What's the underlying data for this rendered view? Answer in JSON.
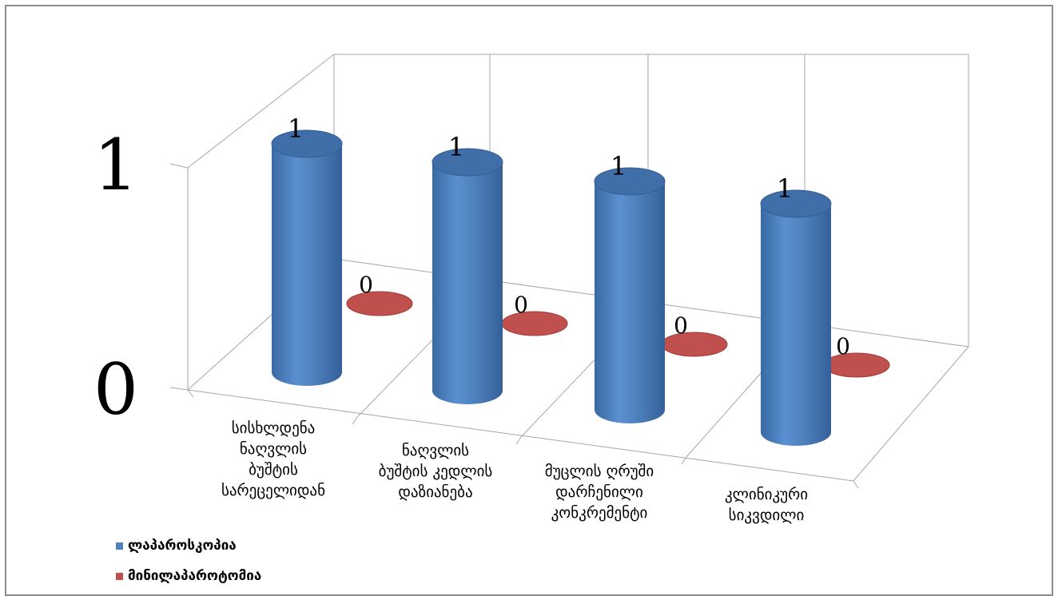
{
  "chart_data": {
    "type": "bar",
    "style": "3d-cylinder",
    "categories": [
      "სისხლდენა ნაღვლის ბუშტის სარეცელიდან",
      "ნაღვლის ბუშტის კედლის დაზიანება",
      "მუცლის ღრუში დარჩენილი კონკრემენტი",
      "კლინიკური სიკვდილი"
    ],
    "categories_wrapped": [
      [
        "სისხლდენა",
        "ნაღვლის",
        "ბუშტის",
        "სარეცელიდან"
      ],
      [
        "ნაღვლის",
        "ბუშტის კედლის",
        "დაზიანება"
      ],
      [
        "მუცლის ღრუში",
        "დარჩენილი",
        "კონკრემენტი"
      ],
      [
        "კლინიკური",
        "სიკვდილი"
      ]
    ],
    "series": [
      {
        "name": "ლაპაროსკოპია",
        "values": [
          1,
          1,
          1,
          1
        ],
        "color": "#4f81bd"
      },
      {
        "name": "მინილაპაროტომია",
        "values": [
          0,
          0,
          0,
          0
        ],
        "color": "#c0504d"
      }
    ],
    "y_ticks": [
      "0",
      "1"
    ],
    "ylim": [
      0,
      1
    ],
    "data_labels": true,
    "grid": true,
    "legend_position": "bottom-left"
  }
}
